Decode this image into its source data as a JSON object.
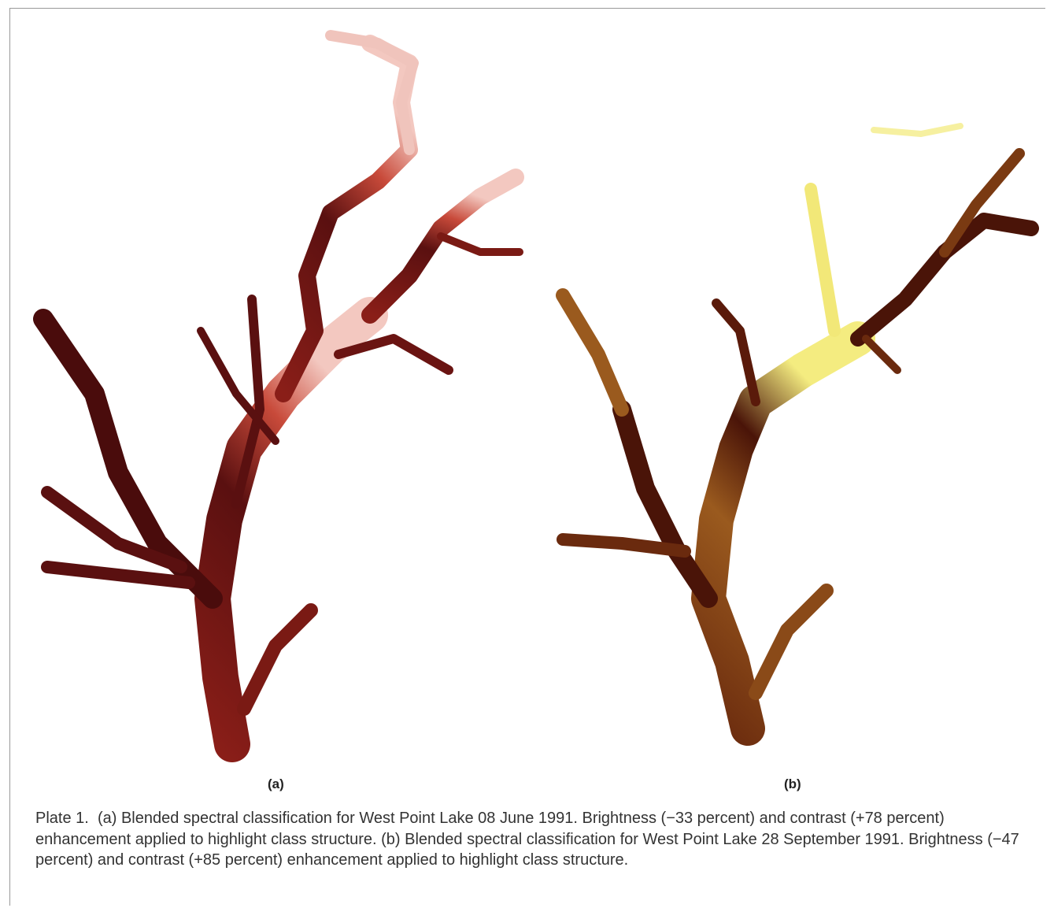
{
  "figure": {
    "panels": [
      {
        "label": "(a)"
      },
      {
        "label": "(b)"
      }
    ]
  },
  "caption": {
    "label": "Plate 1.",
    "text": "(a) Blended spectral classification for West Point Lake 08 June 1991. Brightness (−33 percent) and contrast (+78 percent) enhancement applied to highlight class structure. (b) Blended spectral classification for West Point Lake 28 September 1991. Brightness (−47 percent) and contrast (+85 percent) enhancement applied to highlight class structure."
  }
}
